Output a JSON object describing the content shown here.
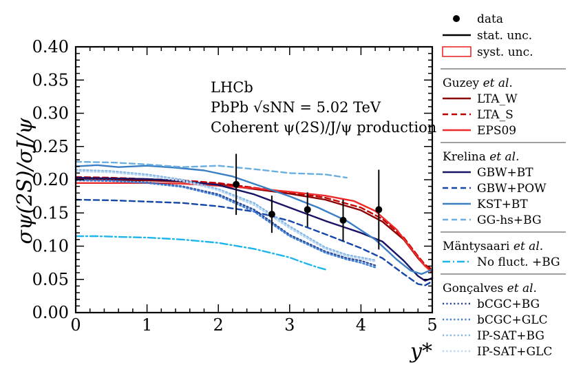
{
  "chart_data": {
    "type": "line",
    "xlabel": "y*",
    "ylabel": "σψ(2S)/σJ/ψ",
    "xlim": [
      0,
      5
    ],
    "ylim": [
      0.0,
      0.4
    ],
    "x_ticks": [
      "0",
      "1",
      "2",
      "3",
      "4",
      "5"
    ],
    "y_ticks": [
      "0.00",
      "0.05",
      "0.10",
      "0.15",
      "0.20",
      "0.25",
      "0.30",
      "0.35",
      "0.40"
    ],
    "grid": false,
    "legend_position": "right",
    "annotations": [
      "LHCb",
      "PbPb √sNN = 5.02 TeV",
      "Coherent ψ(2S)/J/ψ production"
    ],
    "data_points": {
      "name": "data",
      "x": [
        2.25,
        2.75,
        3.25,
        3.75,
        4.25
      ],
      "y": [
        0.193,
        0.148,
        0.155,
        0.139,
        0.155
      ],
      "err": [
        0.046,
        0.028,
        0.026,
        0.031,
        0.06
      ]
    },
    "legend": {
      "data_label": "data",
      "stat_label": "stat. unc.",
      "syst_label": "syst. unc.",
      "groups": [
        {
          "head_pre": "Guzey",
          "head_etal": "et al.",
          "items": [
            "LTA_W",
            "LTA_S",
            "EPS09"
          ]
        },
        {
          "head_pre": "Krelina",
          "head_etal": "et al.",
          "items": [
            "GBW+BT",
            "GBW+POW",
            "KST+BT",
            "GG-hs+BG"
          ]
        },
        {
          "head_pre": "Mäntysaari",
          "head_etal": "et al.",
          "items": [
            "No fluct. +BG"
          ]
        },
        {
          "head_pre": "Gonçalves",
          "head_etal": "et al.",
          "items": [
            "bCGC+BG",
            "bCGC+GLC",
            "IP-SAT+BG",
            "IP-SAT+GLC"
          ]
        }
      ]
    },
    "series": [
      {
        "name": "LTA_W",
        "color": "#8b0000",
        "dash": "solid",
        "x": [
          0,
          0.5,
          1.0,
          1.5,
          2.0,
          2.5,
          3.0,
          3.5,
          4.0,
          4.3,
          4.6,
          4.8,
          4.9,
          5.0
        ],
        "y": [
          0.201,
          0.2,
          0.199,
          0.197,
          0.193,
          0.186,
          0.179,
          0.17,
          0.154,
          0.137,
          0.11,
          0.082,
          0.07,
          0.063
        ]
      },
      {
        "name": "LTA_S",
        "color": "#c00000",
        "dash": "dashed",
        "x": [
          0,
          0.5,
          1.0,
          1.5,
          2.0,
          2.5,
          3.0,
          3.5,
          4.0,
          4.3,
          4.6,
          4.8,
          4.9,
          5.0
        ],
        "y": [
          0.204,
          0.203,
          0.201,
          0.199,
          0.195,
          0.188,
          0.181,
          0.173,
          0.158,
          0.141,
          0.113,
          0.085,
          0.072,
          0.065
        ]
      },
      {
        "name": "EPS09",
        "color": "#ee2a2a",
        "dash": "solid",
        "x": [
          0,
          0.5,
          1.0,
          1.5,
          2.0,
          2.5,
          3.0,
          3.5,
          3.9,
          4.2,
          4.5,
          4.75,
          4.9,
          5.0
        ],
        "y": [
          0.195,
          0.195,
          0.195,
          0.194,
          0.191,
          0.187,
          0.182,
          0.176,
          0.168,
          0.153,
          0.125,
          0.09,
          0.07,
          0.06
        ]
      },
      {
        "name": "GBW+BT",
        "color": "#1a1466",
        "dash": "solid",
        "x": [
          0,
          0.5,
          1.0,
          1.5,
          2.0,
          2.5,
          3.0,
          3.5,
          4.0,
          4.3,
          4.6,
          4.8,
          4.9,
          5.0
        ],
        "y": [
          0.203,
          0.202,
          0.201,
          0.198,
          0.192,
          0.178,
          0.158,
          0.138,
          0.12,
          0.107,
          0.078,
          0.055,
          0.048,
          0.052
        ]
      },
      {
        "name": "GBW+POW",
        "color": "#1547a8",
        "dash": "dashed",
        "x": [
          0,
          0.5,
          1.0,
          1.5,
          2.0,
          2.5,
          3.0,
          3.5,
          4.0,
          4.3,
          4.6,
          4.8,
          4.9,
          5.0
        ],
        "y": [
          0.17,
          0.169,
          0.167,
          0.165,
          0.16,
          0.152,
          0.138,
          0.118,
          0.097,
          0.082,
          0.058,
          0.043,
          0.041,
          0.047
        ]
      },
      {
        "name": "KST+BT",
        "color": "#3a7ec4",
        "dash": "solid",
        "x": [
          0,
          0.3,
          0.6,
          1.0,
          1.4,
          1.8,
          2.2,
          2.6,
          3.0,
          3.4,
          3.8,
          4.2,
          4.5,
          4.7,
          4.85,
          5.0
        ],
        "y": [
          0.22,
          0.222,
          0.219,
          0.221,
          0.218,
          0.214,
          0.205,
          0.19,
          0.175,
          0.158,
          0.138,
          0.11,
          0.08,
          0.063,
          0.058,
          0.065
        ]
      },
      {
        "name": "GG-hs+BG",
        "color": "#6aaee0",
        "dash": "dashed",
        "x": [
          0,
          0.5,
          1.0,
          1.5,
          2.0,
          2.5,
          3.0,
          3.5,
          3.8
        ],
        "y": [
          0.227,
          0.226,
          0.223,
          0.219,
          0.221,
          0.216,
          0.21,
          0.208,
          0.203
        ]
      },
      {
        "name": "No fluct. +BG",
        "color": "#1cb5ec",
        "dash": "dashdot",
        "x": [
          0,
          0.3,
          0.6,
          1.0,
          1.5,
          2.0,
          2.5,
          3.0,
          3.2,
          3.4,
          3.5
        ],
        "y": [
          0.115,
          0.115,
          0.114,
          0.113,
          0.11,
          0.105,
          0.096,
          0.083,
          0.075,
          0.068,
          0.065
        ]
      },
      {
        "name": "bCGC+BG",
        "color": "#2b4a9a",
        "dash": "dotted",
        "x": [
          0,
          0.5,
          1.0,
          1.5,
          2.0,
          2.5,
          3.0,
          3.5,
          3.8,
          4.0,
          4.2
        ],
        "y": [
          0.2,
          0.199,
          0.196,
          0.19,
          0.178,
          0.155,
          0.117,
          0.092,
          0.082,
          0.078,
          0.071
        ]
      },
      {
        "name": "bCGC+GLC",
        "color": "#3f7fd6",
        "dash": "dotted",
        "x": [
          0,
          0.5,
          1.0,
          1.5,
          2.0,
          2.5,
          3.0,
          3.5,
          3.8,
          4.0,
          4.2
        ],
        "y": [
          0.199,
          0.198,
          0.195,
          0.189,
          0.176,
          0.152,
          0.115,
          0.09,
          0.08,
          0.075,
          0.068
        ]
      },
      {
        "name": "IP-SAT+BG",
        "color": "#86b8e6",
        "dash": "dotted",
        "x": [
          0,
          0.5,
          1.0,
          1.5,
          2.0,
          2.5,
          3.0,
          3.5,
          3.8,
          4.0,
          4.2
        ],
        "y": [
          0.215,
          0.213,
          0.208,
          0.2,
          0.186,
          0.165,
          0.13,
          0.098,
          0.087,
          0.083,
          0.079
        ]
      },
      {
        "name": "IP-SAT+GLC",
        "color": "#b8d6f4",
        "dash": "dotted",
        "x": [
          0,
          0.5,
          1.0,
          1.5,
          2.0,
          2.5,
          3.0,
          3.5,
          3.8,
          4.0,
          4.2
        ],
        "y": [
          0.213,
          0.211,
          0.206,
          0.198,
          0.184,
          0.162,
          0.127,
          0.096,
          0.085,
          0.081,
          0.077
        ]
      }
    ]
  }
}
